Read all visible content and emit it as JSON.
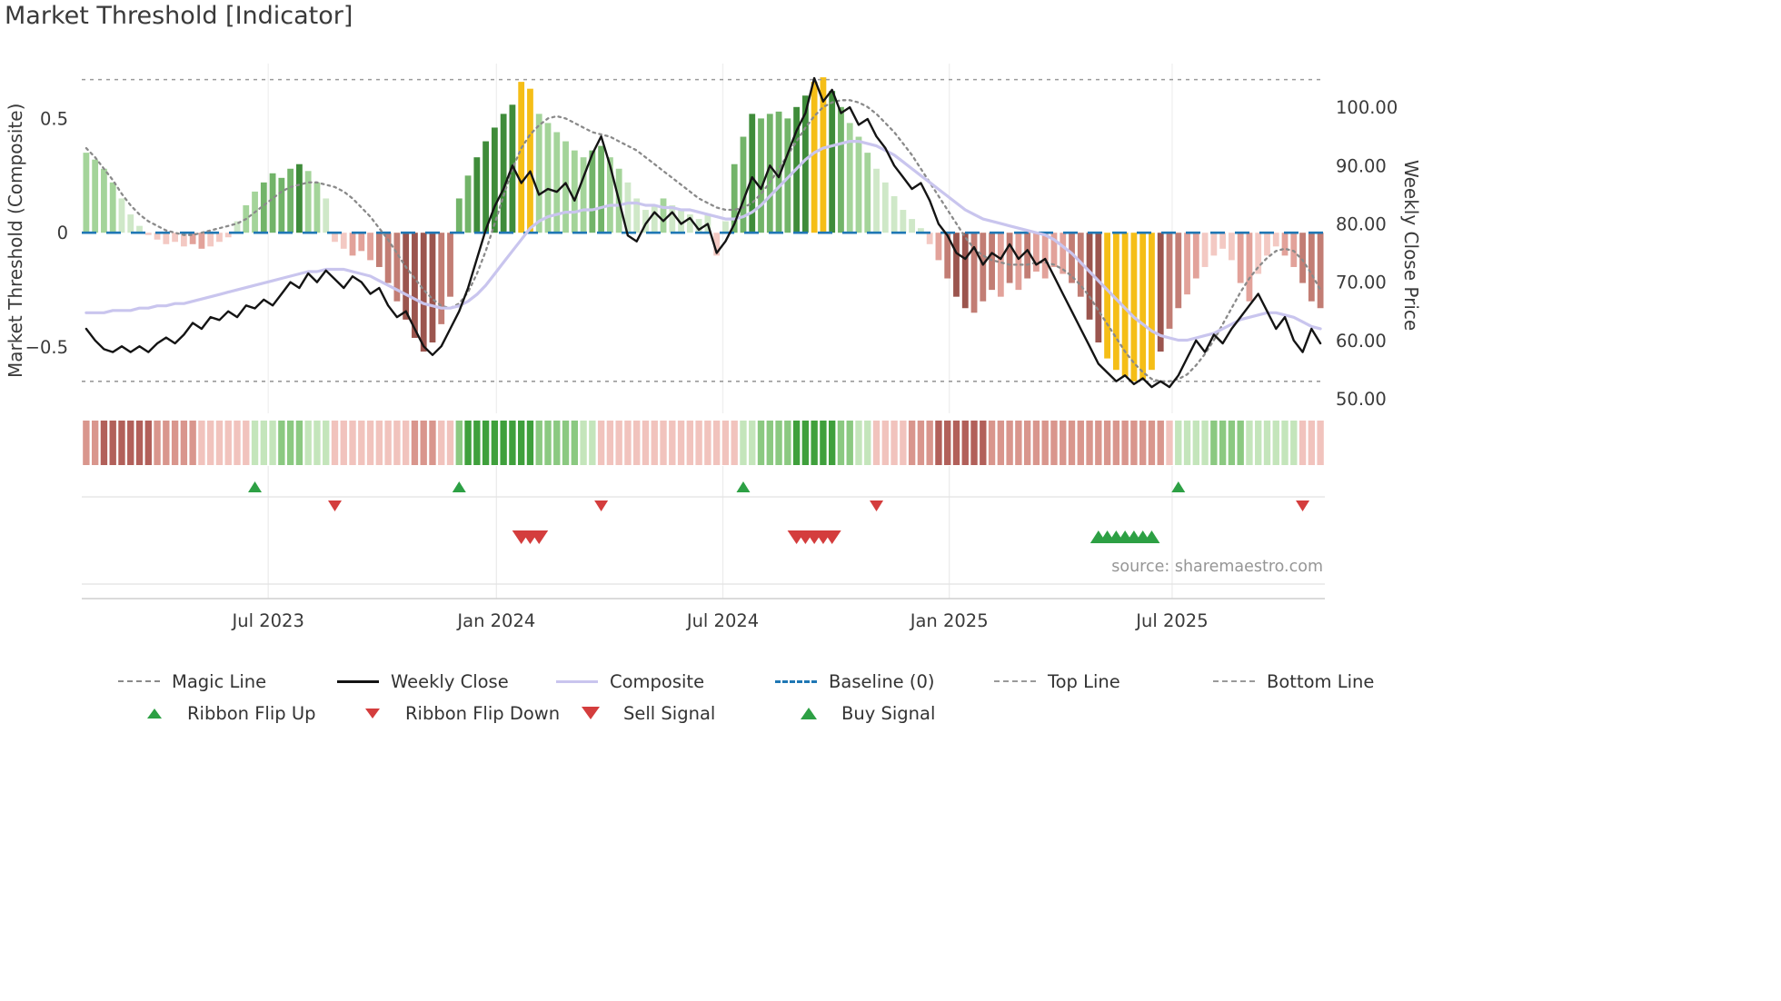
{
  "header": {
    "title": "Market Threshold [Indicator]"
  },
  "source": {
    "text": "source: sharemaestro.com"
  },
  "legend": {
    "items": [
      {
        "label": "Magic Line"
      },
      {
        "label": "Weekly Close"
      },
      {
        "label": "Composite"
      },
      {
        "label": "Baseline (0)"
      },
      {
        "label": "Top Line"
      },
      {
        "label": "Bottom Line"
      },
      {
        "label": "Ribbon Flip Up"
      },
      {
        "label": "Ribbon Flip Down"
      },
      {
        "label": "Sell Signal"
      },
      {
        "label": "Buy Signal"
      }
    ]
  },
  "chart_data": {
    "type": "combo",
    "title": "Market Threshold [Indicator]",
    "left_axis": {
      "label": "Market Threshold (Composite)",
      "ticks": [
        0.5,
        0,
        -0.5
      ],
      "tick_labels": [
        "0.5",
        "0",
        "−0.5"
      ],
      "range": [
        -0.79,
        0.74
      ]
    },
    "right_axis": {
      "label": "Weekly Close Price",
      "ticks": [
        100,
        90,
        80,
        70,
        60,
        50
      ],
      "tick_labels": [
        "100.00",
        "90.00",
        "80.00",
        "70.00",
        "60.00",
        "50.00"
      ],
      "range": [
        47.5,
        107.5
      ]
    },
    "x_axis": {
      "unit": "week",
      "n_weeks": 140,
      "tick_weeks": [
        21,
        46.7,
        72.2,
        97.7,
        122.8
      ],
      "tick_labels": [
        "Jul 2023",
        "Jan 2024",
        "Jul 2024",
        "Jan 2025",
        "Jul 2025"
      ]
    },
    "reference_lines": {
      "baseline": 0,
      "top_line": 0.67,
      "bottom_line": -0.65
    },
    "series": {
      "composite_bars": [
        0.35,
        0.32,
        0.28,
        0.22,
        0.15,
        0.08,
        0.03,
        -0.01,
        -0.03,
        -0.05,
        -0.04,
        -0.06,
        -0.05,
        -0.07,
        -0.06,
        -0.04,
        -0.02,
        0.05,
        0.12,
        0.18,
        0.22,
        0.26,
        0.24,
        0.28,
        0.3,
        0.27,
        0.22,
        0.15,
        -0.04,
        -0.07,
        -0.1,
        -0.08,
        -0.12,
        -0.15,
        -0.22,
        -0.3,
        -0.38,
        -0.46,
        -0.52,
        -0.48,
        -0.4,
        -0.28,
        0.15,
        0.25,
        0.33,
        0.4,
        0.46,
        0.52,
        0.56,
        0.66,
        0.63,
        0.52,
        0.48,
        0.44,
        0.4,
        0.36,
        0.33,
        0.36,
        0.38,
        0.33,
        0.28,
        0.22,
        0.15,
        0.1,
        0.12,
        0.15,
        0.12,
        0.1,
        0.08,
        0.06,
        0.08,
        -0.1,
        0.05,
        0.3,
        0.42,
        0.52,
        0.5,
        0.52,
        0.53,
        0.5,
        0.55,
        0.6,
        0.66,
        0.68,
        0.62,
        0.55,
        0.48,
        0.42,
        0.35,
        0.28,
        0.22,
        0.16,
        0.1,
        0.06,
        0.02,
        -0.05,
        -0.12,
        -0.2,
        -0.28,
        -0.33,
        -0.35,
        -0.3,
        -0.25,
        -0.28,
        -0.22,
        -0.25,
        -0.2,
        -0.17,
        -0.2,
        -0.15,
        -0.18,
        -0.22,
        -0.28,
        -0.38,
        -0.48,
        -0.55,
        -0.6,
        -0.63,
        -0.65,
        -0.64,
        -0.6,
        -0.52,
        -0.42,
        -0.33,
        -0.27,
        -0.2,
        -0.15,
        -0.1,
        -0.07,
        -0.12,
        -0.22,
        -0.3,
        -0.18,
        -0.1,
        -0.06,
        -0.1,
        -0.15,
        -0.22,
        -0.3,
        -0.33
      ],
      "bar_shades": [
        "g1",
        "g1",
        "g1",
        "g1",
        "g0",
        "g0",
        "g0",
        "r0",
        "r0",
        "r0",
        "r0",
        "r0",
        "r1",
        "r1",
        "r0",
        "r0",
        "r0",
        "g0",
        "g1",
        "g1",
        "g2",
        "g2",
        "g2",
        "g2",
        "g3",
        "g1",
        "g1",
        "g0",
        "r0",
        "r0",
        "r1",
        "r1",
        "r1",
        "r2",
        "r2",
        "r2",
        "r3",
        "r3",
        "r3",
        "r3",
        "r2",
        "r2",
        "g2",
        "g2",
        "g3",
        "g3",
        "g3",
        "g3",
        "g3",
        "y",
        "y",
        "g1",
        "g1",
        "g1",
        "g1",
        "g1",
        "g1",
        "g2",
        "g2",
        "g1",
        "g1",
        "g0",
        "g0",
        "g0",
        "g0",
        "g1",
        "g0",
        "g0",
        "g0",
        "g0",
        "g0",
        "r0",
        "g0",
        "g2",
        "g2",
        "g3",
        "g2",
        "g2",
        "g2",
        "g2",
        "g3",
        "g3",
        "y",
        "y",
        "g3",
        "g2",
        "g1",
        "g1",
        "g1",
        "g0",
        "g0",
        "g0",
        "g0",
        "g0",
        "g0",
        "r0",
        "r1",
        "r2",
        "r3",
        "r3",
        "r2",
        "r2",
        "r2",
        "r1",
        "r2",
        "r1",
        "r2",
        "r1",
        "r1",
        "r1",
        "r1",
        "r2",
        "r2",
        "r3",
        "r3",
        "y",
        "y",
        "y",
        "y",
        "y",
        "y",
        "r3",
        "r2",
        "r2",
        "r1",
        "r1",
        "r0",
        "r0",
        "r0",
        "r0",
        "r1",
        "r1",
        "r0",
        "r0",
        "r0",
        "r1",
        "r1",
        "r2",
        "r2",
        "r2"
      ],
      "weekly_close": [
        62,
        60,
        58.5,
        58,
        59,
        58,
        59,
        58,
        59.5,
        60.5,
        59.5,
        61,
        63,
        62,
        64,
        63.5,
        65,
        64,
        66,
        65.5,
        67,
        66,
        68,
        70,
        69,
        71.5,
        70,
        72,
        70.5,
        69,
        71,
        70,
        68,
        69,
        66,
        64,
        65,
        62,
        59,
        57.5,
        59,
        62,
        65,
        69,
        74,
        79,
        83,
        86,
        90,
        87,
        89,
        85,
        86,
        85.5,
        87,
        84,
        88,
        92,
        95,
        90,
        84,
        78,
        77,
        80,
        82,
        80.5,
        82,
        80,
        81,
        79,
        80,
        75,
        77,
        80,
        84,
        88,
        86,
        90,
        88,
        92,
        96,
        99,
        105,
        101,
        103,
        99,
        100,
        97,
        98,
        95,
        93,
        90,
        88,
        86,
        87,
        84,
        80,
        78,
        75,
        74,
        76,
        73,
        75,
        74,
        76.5,
        74,
        75.5,
        73,
        74,
        71,
        68,
        65,
        62,
        59,
        56,
        54.5,
        53,
        54,
        52.5,
        53.5,
        52,
        53,
        52,
        54,
        57,
        60,
        58,
        61,
        59.5,
        62,
        64,
        66,
        68,
        65,
        62,
        64,
        60,
        58,
        62,
        59.5
      ],
      "composite_line": [
        -0.35,
        -0.35,
        -0.35,
        -0.34,
        -0.34,
        -0.34,
        -0.33,
        -0.33,
        -0.32,
        -0.32,
        -0.31,
        -0.31,
        -0.3,
        -0.29,
        -0.28,
        -0.27,
        -0.26,
        -0.25,
        -0.24,
        -0.23,
        -0.22,
        -0.21,
        -0.2,
        -0.19,
        -0.18,
        -0.17,
        -0.17,
        -0.16,
        -0.16,
        -0.16,
        -0.17,
        -0.18,
        -0.19,
        -0.21,
        -0.23,
        -0.25,
        -0.27,
        -0.29,
        -0.31,
        -0.32,
        -0.33,
        -0.33,
        -0.32,
        -0.3,
        -0.27,
        -0.23,
        -0.18,
        -0.13,
        -0.08,
        -0.03,
        0.02,
        0.05,
        0.07,
        0.08,
        0.09,
        0.09,
        0.1,
        0.1,
        0.11,
        0.12,
        0.12,
        0.13,
        0.13,
        0.12,
        0.12,
        0.11,
        0.11,
        0.1,
        0.1,
        0.09,
        0.08,
        0.07,
        0.06,
        0.06,
        0.07,
        0.09,
        0.12,
        0.16,
        0.2,
        0.24,
        0.28,
        0.32,
        0.35,
        0.37,
        0.38,
        0.39,
        0.4,
        0.4,
        0.39,
        0.38,
        0.36,
        0.34,
        0.31,
        0.28,
        0.25,
        0.22,
        0.19,
        0.16,
        0.13,
        0.1,
        0.08,
        0.06,
        0.05,
        0.04,
        0.03,
        0.02,
        0.01,
        0.0,
        -0.01,
        -0.03,
        -0.06,
        -0.09,
        -0.13,
        -0.17,
        -0.21,
        -0.25,
        -0.29,
        -0.33,
        -0.37,
        -0.4,
        -0.43,
        -0.45,
        -0.46,
        -0.47,
        -0.47,
        -0.46,
        -0.45,
        -0.44,
        -0.42,
        -0.4,
        -0.38,
        -0.37,
        -0.36,
        -0.35,
        -0.35,
        -0.36,
        -0.37,
        -0.39,
        -0.41,
        -0.42
      ],
      "magic_line": [
        0.37,
        0.33,
        0.28,
        0.23,
        0.17,
        0.12,
        0.08,
        0.05,
        0.03,
        0.01,
        0.0,
        -0.01,
        -0.01,
        0.0,
        0.01,
        0.02,
        0.03,
        0.04,
        0.06,
        0.09,
        0.12,
        0.15,
        0.18,
        0.2,
        0.21,
        0.22,
        0.22,
        0.21,
        0.2,
        0.18,
        0.15,
        0.11,
        0.07,
        0.02,
        -0.03,
        -0.09,
        -0.15,
        -0.2,
        -0.25,
        -0.29,
        -0.32,
        -0.33,
        -0.31,
        -0.26,
        -0.18,
        -0.08,
        0.04,
        0.16,
        0.28,
        0.37,
        0.43,
        0.47,
        0.5,
        0.51,
        0.5,
        0.48,
        0.46,
        0.44,
        0.43,
        0.42,
        0.4,
        0.38,
        0.36,
        0.33,
        0.3,
        0.27,
        0.24,
        0.21,
        0.18,
        0.15,
        0.13,
        0.11,
        0.1,
        0.1,
        0.11,
        0.13,
        0.17,
        0.22,
        0.28,
        0.34,
        0.4,
        0.46,
        0.51,
        0.55,
        0.57,
        0.58,
        0.58,
        0.57,
        0.55,
        0.52,
        0.48,
        0.44,
        0.39,
        0.34,
        0.28,
        0.22,
        0.16,
        0.1,
        0.04,
        -0.02,
        -0.07,
        -0.1,
        -0.12,
        -0.13,
        -0.14,
        -0.14,
        -0.14,
        -0.13,
        -0.13,
        -0.14,
        -0.16,
        -0.19,
        -0.23,
        -0.28,
        -0.34,
        -0.4,
        -0.46,
        -0.52,
        -0.57,
        -0.61,
        -0.64,
        -0.65,
        -0.65,
        -0.64,
        -0.62,
        -0.58,
        -0.53,
        -0.47,
        -0.4,
        -0.33,
        -0.26,
        -0.2,
        -0.15,
        -0.11,
        -0.08,
        -0.07,
        -0.08,
        -0.12,
        -0.18,
        -0.25
      ]
    },
    "ribbon": [
      "r2",
      "r2",
      "r3",
      "r3",
      "r3",
      "r3",
      "r3",
      "r3",
      "r2",
      "r2",
      "r2",
      "r2",
      "r2",
      "r1",
      "r1",
      "r1",
      "r1",
      "r1",
      "r1",
      "g1",
      "g1",
      "g1",
      "g2",
      "g2",
      "g2",
      "g1",
      "g1",
      "g1",
      "r1",
      "r1",
      "r1",
      "r1",
      "r1",
      "r1",
      "r1",
      "r1",
      "r1",
      "r2",
      "r2",
      "r2",
      "r1",
      "r1",
      "g2",
      "g3",
      "g3",
      "g3",
      "g3",
      "g3",
      "g3",
      "g3",
      "g3",
      "g2",
      "g2",
      "g2",
      "g2",
      "g2",
      "g1",
      "g1",
      "r1",
      "r1",
      "r1",
      "r1",
      "r1",
      "r1",
      "r1",
      "r1",
      "r1",
      "r1",
      "r1",
      "r1",
      "r1",
      "r1",
      "r1",
      "r1",
      "g1",
      "g1",
      "g2",
      "g2",
      "g2",
      "g2",
      "g3",
      "g3",
      "g3",
      "g3",
      "g3",
      "g2",
      "g2",
      "g1",
      "g1",
      "r1",
      "r1",
      "r1",
      "r1",
      "r2",
      "r2",
      "r2",
      "r3",
      "r3",
      "r3",
      "r3",
      "r3",
      "r3",
      "r2",
      "r2",
      "r2",
      "r2",
      "r2",
      "r2",
      "r2",
      "r2",
      "r2",
      "r2",
      "r2",
      "r2",
      "r2",
      "r2",
      "r2",
      "r2",
      "r2",
      "r2",
      "r2",
      "r2",
      "r1",
      "g1",
      "g1",
      "g1",
      "g1",
      "g2",
      "g2",
      "g2",
      "g2",
      "g1",
      "g1",
      "g1",
      "g1",
      "g1",
      "g1",
      "r1",
      "r1",
      "r1"
    ],
    "signals": {
      "ribbon_flip_up_weeks": [
        19,
        42,
        74,
        123
      ],
      "ribbon_flip_down_weeks": [
        28,
        58,
        89,
        137
      ],
      "sell_signal_weeks": [
        49,
        50,
        51,
        80,
        81,
        82,
        83,
        84
      ],
      "buy_signal_weeks": [
        114,
        115,
        116,
        117,
        118,
        119,
        120
      ]
    },
    "palette": {
      "bars": {
        "g0": "#cfe8c8",
        "g1": "#a4d49a",
        "g2": "#72b469",
        "g3": "#3f8c3a",
        "y": "#f5be17",
        "r0": "#f3c9c3",
        "r1": "#e2a29a",
        "r2": "#c27d74",
        "r3": "#9b554e"
      },
      "ribbon": {
        "g1": "#c4e5bb",
        "g2": "#8bc981",
        "g3": "#3fa03c",
        "r1": "#f1c3bd",
        "r2": "#d9968d",
        "r3": "#b2605a"
      },
      "magic_line": "#8a8a8a",
      "weekly_close": "#141414",
      "composite_line": "#c9c5ee",
      "baseline": "#1f77b4",
      "reference": "#9a9a9a",
      "signal_green": "#2da044",
      "signal_red": "#d43d3d"
    },
    "legend_position": "bottom",
    "grid": "faint-vertical"
  }
}
